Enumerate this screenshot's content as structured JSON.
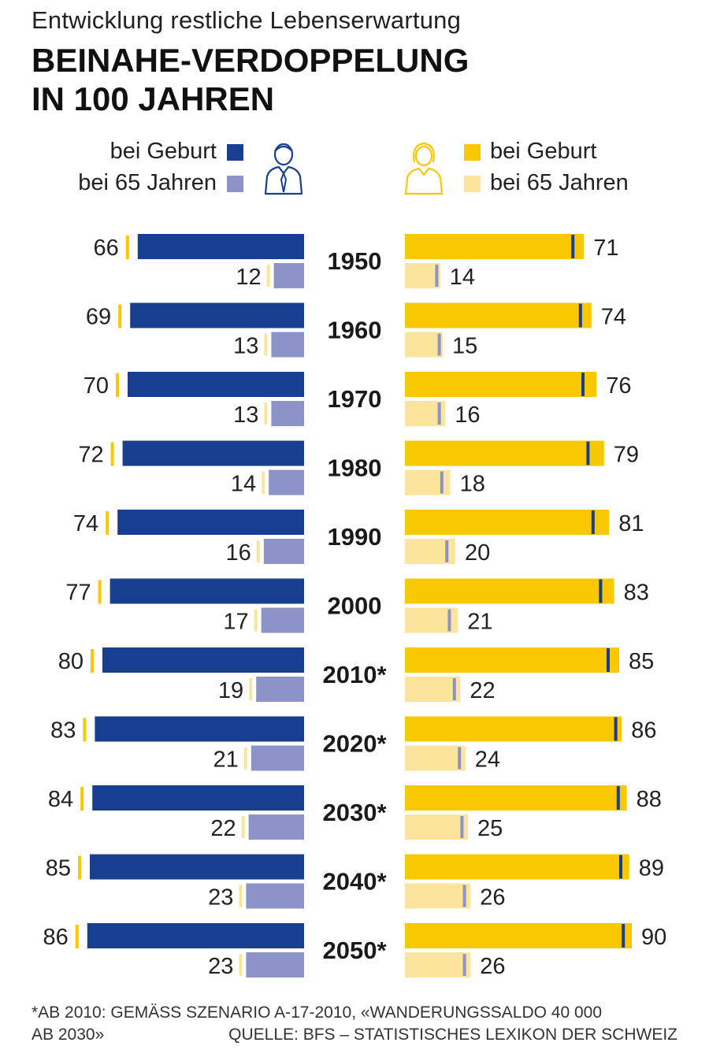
{
  "header": {
    "subtitle": "Entwicklung restliche Lebenserwartung",
    "title_line1": "BEINAHE-VERDOPPELUNG",
    "title_line2": "IN 100 JAHREN"
  },
  "legend": {
    "men_birth": "bei Geburt",
    "men_65": "bei 65 Jahren",
    "women_birth": "bei Geburt",
    "women_65": "bei 65 Jahren",
    "men_icon": "man-icon",
    "women_icon": "woman-icon"
  },
  "colors": {
    "men_birth": "#173e8f",
    "men_65": "#8b93c7",
    "women_birth": "#f9c800",
    "women_65": "#fce49a",
    "marker_men": "#f9c800",
    "marker_women_birth": "#173e8f",
    "marker_women_65": "#8b93c7"
  },
  "chart_data": {
    "type": "bar",
    "title": "BEINAHE-VERDOPPELUNG IN 100 JAHREN",
    "subtitle": "Entwicklung restliche Lebenserwartung",
    "categories": [
      "1950",
      "1960",
      "1970",
      "1980",
      "1990",
      "2000",
      "2010*",
      "2020*",
      "2030*",
      "2040*",
      "2050*"
    ],
    "series": [
      {
        "name": "Männer bei Geburt",
        "values": [
          66,
          69,
          70,
          72,
          74,
          77,
          80,
          83,
          84,
          85,
          86
        ]
      },
      {
        "name": "Männer bei 65 Jahren",
        "values": [
          12,
          13,
          13,
          14,
          16,
          17,
          19,
          21,
          22,
          23,
          23
        ]
      },
      {
        "name": "Frauen bei Geburt",
        "values": [
          71,
          74,
          76,
          79,
          81,
          83,
          85,
          86,
          88,
          89,
          90
        ]
      },
      {
        "name": "Frauen bei 65 Jahren",
        "values": [
          14,
          15,
          16,
          18,
          20,
          21,
          22,
          24,
          25,
          26,
          26
        ]
      }
    ],
    "xlabel": "",
    "ylabel": "",
    "orientation": "butterfly-horizontal",
    "legend_position": "top"
  },
  "footnote": {
    "line1": "*AB 2010: GEMÄSS SZENARIO A-17-2010, «WANDERUNGSSALDO 40 000",
    "line2": "AB 2030»",
    "source": "QUELLE: BFS – STATISTISCHES LEXIKON DER SCHWEIZ"
  }
}
